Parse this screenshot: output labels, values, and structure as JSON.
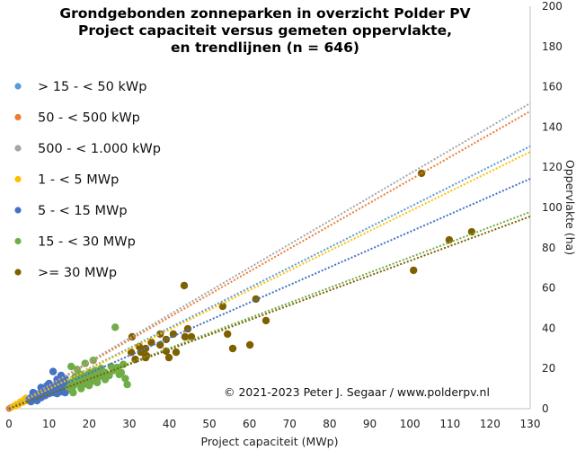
{
  "chart_data": {
    "type": "scatter",
    "title": [
      "Grondgebonden zonneparken in overzicht Polder PV",
      "Project capaciteit versus gemeten oppervlakte,",
      "en trendlijnen  (n = 646)"
    ],
    "xlabel": "Project capaciteit (MWp)",
    "ylabel": "Oppervlakte  (ha)",
    "xlim": [
      0,
      130
    ],
    "ylim": [
      0,
      200
    ],
    "x_ticks": [
      "0",
      "10",
      "20",
      "30",
      "40",
      "50",
      "60",
      "70",
      "80",
      "90",
      "100",
      "110",
      "120",
      "130"
    ],
    "y_ticks": [
      "0",
      "20",
      "40",
      "60",
      "80",
      "100",
      "120",
      "140",
      "160",
      "180",
      "200"
    ],
    "y_axis_side": "right",
    "grid": false,
    "legend_position": "top-left",
    "annotation": "© 2021-2023  Peter J. Segaar / www.polderpv.nl",
    "series": [
      {
        "name": "> 15 - < 50 kWp",
        "color": "#5B9BD5",
        "trend_slope": 1.003,
        "points": [
          [
            0.02,
            0.05
          ],
          [
            0.03,
            0.06
          ],
          [
            0.04,
            0.08
          ]
        ]
      },
      {
        "name": "50 - < 500 kWp",
        "color": "#ED7D31",
        "trend_slope": 1.137,
        "points": [
          [
            0.1,
            0.15
          ],
          [
            0.2,
            0.3
          ],
          [
            0.3,
            0.35
          ],
          [
            0.4,
            0.5
          ],
          [
            0.25,
            0.4
          ]
        ]
      },
      {
        "name": "500 - < 1.000 kWp",
        "color": "#A5A5A5",
        "trend_slope": 1.168,
        "points": [
          [
            0.6,
            0.8
          ],
          [
            0.7,
            0.9
          ],
          [
            0.8,
            1.0
          ],
          [
            0.9,
            1.1
          ]
        ]
      },
      {
        "name": "1 - < 5 MWp",
        "color": "#FFC000",
        "trend_slope": 0.982,
        "points": [
          [
            1,
            1.2
          ],
          [
            1.3,
            1.5
          ],
          [
            1.6,
            1.8
          ],
          [
            2,
            2.1
          ],
          [
            2.3,
            2.5
          ],
          [
            2.6,
            2.6
          ],
          [
            3,
            3.2
          ],
          [
            3.3,
            3.4
          ],
          [
            3.6,
            3.9
          ],
          [
            4,
            4.2
          ],
          [
            4.4,
            4.3
          ],
          [
            4.8,
            4.6
          ],
          [
            1.8,
            2.3
          ],
          [
            2.8,
            3.6
          ],
          [
            3.8,
            4.8
          ],
          [
            4.2,
            5.5
          ],
          [
            1.5,
            1.1
          ],
          [
            2.5,
            2.0
          ],
          [
            3.5,
            3.0
          ],
          [
            4.5,
            3.8
          ]
        ]
      },
      {
        "name": "5 - < 15 MWp",
        "color": "#4472C4",
        "trend_slope": 0.879,
        "points": [
          [
            5,
            4.5
          ],
          [
            5.5,
            5.5
          ],
          [
            6,
            6.0
          ],
          [
            6.5,
            5.0
          ],
          [
            7,
            7.0
          ],
          [
            7.5,
            6.5
          ],
          [
            8,
            8.0
          ],
          [
            8.5,
            7.2
          ],
          [
            9,
            9.0
          ],
          [
            9.5,
            8.0
          ],
          [
            10,
            10.0
          ],
          [
            10.5,
            9.0
          ],
          [
            11,
            11.0
          ],
          [
            11.5,
            10.0
          ],
          [
            12,
            12.0
          ],
          [
            12.5,
            11.0
          ],
          [
            13,
            10.0
          ],
          [
            13.5,
            12.0
          ],
          [
            14,
            11.5
          ],
          [
            14.5,
            13.0
          ],
          [
            6,
            8.0
          ],
          [
            8,
            10.5
          ],
          [
            10,
            12.5
          ],
          [
            12,
            14.5
          ],
          [
            13,
            16.5
          ],
          [
            11,
            18.5
          ],
          [
            14,
            15.0
          ],
          [
            7,
            4.0
          ],
          [
            9,
            6.5
          ],
          [
            11,
            8.0
          ],
          [
            13,
            8.5
          ],
          [
            14,
            8.0
          ],
          [
            12,
            7.5
          ],
          [
            10,
            7.5
          ],
          [
            5.5,
            3.5
          ],
          [
            8,
            5.5
          ],
          [
            9.5,
            11.5
          ],
          [
            12.5,
            13.5
          ],
          [
            6.5,
            7.5
          ],
          [
            14.5,
            9.5
          ]
        ]
      },
      {
        "name": "15 - < 30 MWp",
        "color": "#70AD47",
        "trend_slope": 0.752,
        "points": [
          [
            15,
            10.5
          ],
          [
            15.5,
            13.0
          ],
          [
            16,
            11.0
          ],
          [
            16.5,
            16.0
          ],
          [
            17,
            12.5
          ],
          [
            17.5,
            15.0
          ],
          [
            18,
            17.0
          ],
          [
            18.5,
            12.0
          ],
          [
            19,
            14.5
          ],
          [
            19.5,
            16.5
          ],
          [
            20,
            18.0
          ],
          [
            20.5,
            13.5
          ],
          [
            21,
            16.0
          ],
          [
            21.5,
            19.0
          ],
          [
            22,
            15.0
          ],
          [
            22.5,
            17.5
          ],
          [
            23,
            20.0
          ],
          [
            24,
            18.0
          ],
          [
            25,
            16.5
          ],
          [
            26,
            19.0
          ],
          [
            27,
            20.5
          ],
          [
            28,
            18.0
          ],
          [
            29,
            15.0
          ],
          [
            29.5,
            12.0
          ],
          [
            26.5,
            40.5
          ],
          [
            21,
            24.0
          ],
          [
            17,
            19.5
          ],
          [
            15.5,
            21.0
          ],
          [
            19,
            22.5
          ],
          [
            23.5,
            16.0
          ],
          [
            25.5,
            21.0
          ],
          [
            28.5,
            22.0
          ],
          [
            16,
            8.0
          ],
          [
            18,
            10.0
          ],
          [
            20,
            11.5
          ],
          [
            22,
            13.0
          ],
          [
            24,
            14.5
          ],
          [
            27.5,
            17.0
          ]
        ]
      },
      {
        "name": ">= 30 MWp",
        "color": "#7F6000",
        "trend_slope": 0.735,
        "points": [
          [
            43.7,
            61.2
          ],
          [
            53.3,
            50.9
          ],
          [
            61.6,
            54.5
          ],
          [
            44.6,
            39.7
          ],
          [
            43.9,
            35.7
          ],
          [
            45.5,
            35.7
          ],
          [
            54.5,
            37.1
          ],
          [
            64.1,
            43.8
          ],
          [
            55.8,
            29.9
          ],
          [
            60.1,
            31.7
          ],
          [
            102.9,
            117.0
          ],
          [
            109.8,
            83.9
          ],
          [
            115.4,
            87.9
          ],
          [
            100.9,
            68.8
          ],
          [
            30.7,
            35.7
          ],
          [
            32.5,
            30.8
          ],
          [
            34.1,
            25.4
          ],
          [
            37.7,
            37.1
          ],
          [
            37.7,
            31.7
          ],
          [
            39.2,
            34.4
          ],
          [
            39.9,
            25.4
          ],
          [
            41.0,
            37.1
          ],
          [
            39.2,
            28.6
          ],
          [
            41.7,
            28.1
          ],
          [
            32.9,
            28.1
          ],
          [
            34.1,
            29.9
          ],
          [
            34.3,
            26.3
          ],
          [
            30.5,
            28.0
          ],
          [
            31.5,
            24.5
          ],
          [
            35.5,
            33.0
          ]
        ]
      }
    ]
  }
}
